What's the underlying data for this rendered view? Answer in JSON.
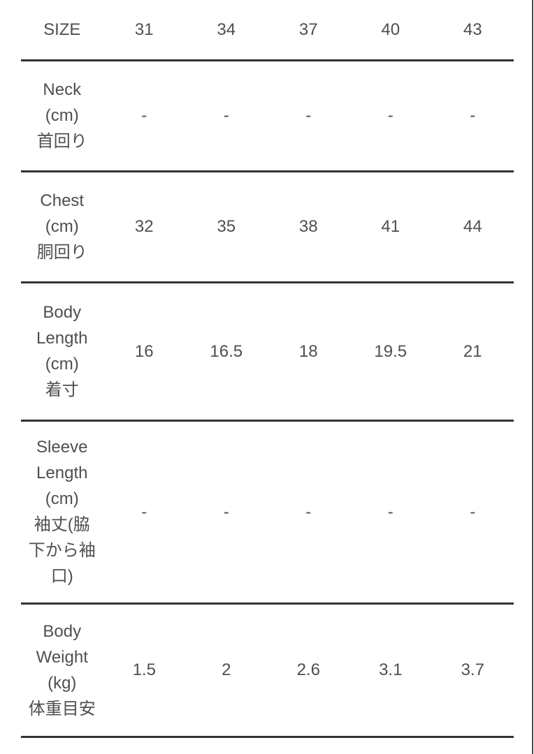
{
  "page": {
    "background": "#ffffff",
    "text_color": "#4f4f4f",
    "divider_color": "#333333",
    "right_edge_color": "#4a4a4a"
  },
  "size_chart": {
    "columns": [
      "SIZE",
      "31",
      "34",
      "37",
      "40",
      "43"
    ],
    "rows": [
      {
        "key": "neck",
        "label_en": "Neck (cm)",
        "label_ja": "首回り",
        "values": [
          "-",
          "-",
          "-",
          "-",
          "-"
        ]
      },
      {
        "key": "chest",
        "label_en": "Chest (cm)",
        "label_ja": "胴回り",
        "values": [
          "32",
          "35",
          "38",
          "41",
          "44"
        ]
      },
      {
        "key": "body-length",
        "label_en": "Body Length (cm)",
        "label_ja": "着寸",
        "values": [
          "16",
          "16.5",
          "18",
          "19.5",
          "21"
        ]
      },
      {
        "key": "sleeve-length",
        "label_en": "Sleeve Length (cm)",
        "label_ja": "袖丈(脇下から袖口)",
        "values": [
          "-",
          "-",
          "-",
          "-",
          "-"
        ]
      },
      {
        "key": "body-weight",
        "label_en": "Body Weight (kg)",
        "label_ja": "体重目安",
        "values": [
          "1.5",
          "2",
          "2.6",
          "3.1",
          "3.7"
        ]
      }
    ]
  }
}
